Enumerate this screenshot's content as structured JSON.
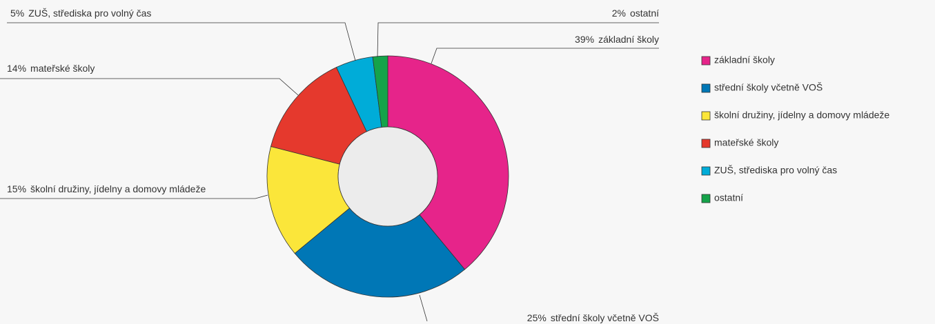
{
  "chart_data": {
    "type": "donut",
    "categories": [
      "základní školy",
      "střední školy včetně VOŠ",
      "školní družiny, jídelny a domovy mládeže",
      "mateřské školy",
      "ZUŠ, střediska pro volný čas",
      "ostatní"
    ],
    "values": [
      39,
      25,
      15,
      14,
      5,
      2
    ],
    "value_labels": [
      "39%",
      "25%",
      "15%",
      "14%",
      "5%",
      "2%"
    ],
    "colors": [
      "#e6248a",
      "#0077b6",
      "#fbe63a",
      "#e5392d",
      "#00acd8",
      "#15a34a"
    ],
    "legend": "right"
  }
}
